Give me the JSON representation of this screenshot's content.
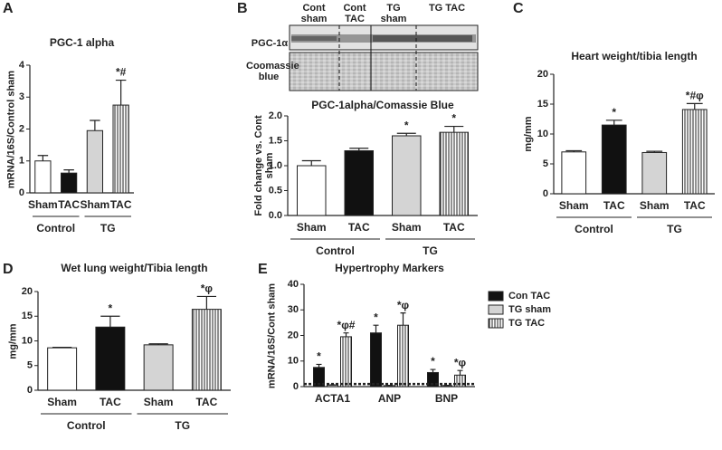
{
  "chart_data": [
    {
      "panel": "A",
      "type": "bar",
      "title": "PGC-1 alpha",
      "ylabel": "mRNA/16S/Control sham",
      "categories": [
        "Sham",
        "TAC",
        "Sham",
        "TAC"
      ],
      "groups": [
        "Control",
        "TG"
      ],
      "values": [
        1.0,
        0.62,
        1.95,
        2.75
      ],
      "errors": [
        0.17,
        0.1,
        0.32,
        0.78
      ],
      "annotations": [
        null,
        null,
        null,
        "*#"
      ],
      "colors": [
        "#ffffff",
        "#111111",
        "#d4d4d4",
        "#ffffff"
      ],
      "hatch": [
        false,
        false,
        false,
        true
      ],
      "ylim": [
        0,
        4
      ],
      "yticks": [
        0,
        1,
        2,
        3,
        4
      ]
    },
    {
      "type": "bar",
      "title": "PGC-1alpha/Comassie Blue",
      "ylabel": "Fold change vs. Cont sham",
      "categories": [
        "Sham",
        "TAC",
        "Sham",
        "TAC"
      ],
      "groups": [
        "Control",
        "TG"
      ],
      "values": [
        1.0,
        1.3,
        1.6,
        1.67
      ],
      "errors": [
        0.1,
        0.05,
        0.05,
        0.12
      ],
      "annotations": [
        null,
        null,
        "*",
        "*"
      ],
      "colors": [
        "#ffffff",
        "#111111",
        "#d4d4d4",
        "#ffffff"
      ],
      "hatch": [
        false,
        false,
        false,
        true
      ],
      "ylim": [
        0,
        2
      ],
      "yticks": [
        {
          "value": 0,
          "label": "0.0"
        },
        0.5,
        {
          "value": 1,
          "label": "1.0"
        },
        1.5,
        {
          "value": 2,
          "label": "2.0"
        }
      ]
    },
    {
      "panel": "C",
      "type": "bar",
      "title": "Heart weight/tibia length",
      "ylabel": "mg/mm",
      "categories": [
        "Sham",
        "TAC",
        "Sham",
        "TAC"
      ],
      "groups": [
        "Control",
        "TG"
      ],
      "values": [
        7.0,
        11.5,
        6.9,
        14.1
      ],
      "errors": [
        0.2,
        0.8,
        0.2,
        1.0
      ],
      "annotations": [
        null,
        "*",
        null,
        "*#φ"
      ],
      "colors": [
        "#ffffff",
        "#111111",
        "#d4d4d4",
        "#ffffff"
      ],
      "hatch": [
        false,
        false,
        false,
        true
      ],
      "ylim": [
        0,
        20
      ],
      "yticks": [
        0,
        5,
        10,
        15,
        20
      ]
    },
    {
      "panel": "D",
      "type": "bar",
      "title": "Wet lung weight/Tibia length",
      "ylabel": "mg/mm",
      "categories": [
        "Sham",
        "TAC",
        "Sham",
        "TAC"
      ],
      "groups": [
        "Control",
        "TG"
      ],
      "values": [
        8.6,
        12.8,
        9.2,
        16.4
      ],
      "errors": [
        0.1,
        2.2,
        0.2,
        2.6
      ],
      "annotations": [
        null,
        "*",
        null,
        "*φ"
      ],
      "colors": [
        "#ffffff",
        "#111111",
        "#d4d4d4",
        "#ffffff"
      ],
      "hatch": [
        false,
        false,
        false,
        true
      ],
      "ylim": [
        0,
        20
      ],
      "yticks": [
        0,
        5,
        10,
        15,
        20
      ]
    },
    {
      "panel": "E",
      "type": "grouped_bar",
      "title": "Hypertrophy Markers",
      "ylabel": "mRNA/16S/Cont sham",
      "categories": [
        "ACTA1",
        "ANP",
        "BNP"
      ],
      "series": [
        {
          "name": "Con TAC",
          "color": "#111111",
          "hatch": false,
          "values": [
            7.5,
            21,
            5.5
          ],
          "errors": [
            1.2,
            3,
            1.2
          ],
          "annotations": [
            "*",
            "*",
            "*"
          ]
        },
        {
          "name": "TG sham",
          "color": "#d4d4d4",
          "hatch": false,
          "values": [
            0.6,
            0.4,
            0.4
          ],
          "errors": [
            0.1,
            0.1,
            0.1
          ],
          "annotations": [
            null,
            null,
            null
          ]
        },
        {
          "name": "TG TAC",
          "color": "#ffffff",
          "hatch": true,
          "values": [
            19.5,
            24,
            4.5
          ],
          "errors": [
            1.5,
            4.8,
            1.8
          ],
          "annotations": [
            "*φ#",
            "*φ",
            "*φ"
          ]
        }
      ],
      "reference_line": 1,
      "legend": "upper-right",
      "ylim": [
        0,
        40
      ],
      "yticks": [
        0,
        10,
        20,
        30,
        40
      ]
    }
  ],
  "blot": {
    "panel": "B",
    "lanes": [
      "Cont sham",
      "Cont TAC",
      "TG sham",
      "TG TAC"
    ],
    "rows": [
      "PGC-1α",
      "Coomassie blue"
    ]
  }
}
